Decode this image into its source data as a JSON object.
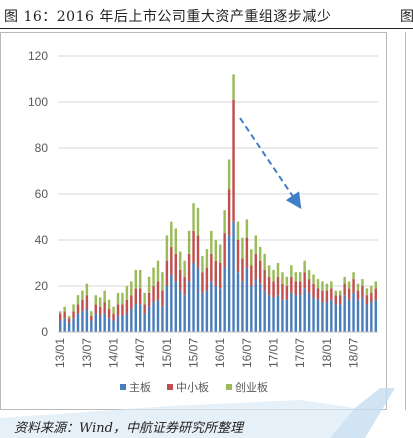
{
  "figure": {
    "title": "图 16：2016 年后上市公司重大资产重组逐步减少",
    "next_fragment": "图",
    "source": "资料来源：Wind，中航证券研究所整理"
  },
  "colors": {
    "main_board": "#4a7ebb",
    "sme_board": "#c0504d",
    "chinext": "#9bbb59",
    "arrow": "#3f7fc7",
    "axis_text": "#595959",
    "grid": "#d9d9d9"
  },
  "chart_data": {
    "type": "bar",
    "stacked": true,
    "title": "",
    "xlabel": "",
    "ylabel": "",
    "ylim": [
      0,
      120
    ],
    "yticks": [
      0,
      20,
      40,
      60,
      80,
      100,
      120
    ],
    "grid": true,
    "legend_position": "bottom",
    "annotation": "dashed arrow pointing down-right from 16/04 toward 17/04",
    "x_tick_labels": [
      "13/01",
      "13/07",
      "14/01",
      "14/07",
      "15/01",
      "15/07",
      "16/01",
      "16/07",
      "17/01",
      "17/07",
      "18/01",
      "18/07"
    ],
    "categories": [
      "13/01",
      "13/02",
      "13/03",
      "13/04",
      "13/05",
      "13/06",
      "13/07",
      "13/08",
      "13/09",
      "13/10",
      "13/11",
      "13/12",
      "14/01",
      "14/02",
      "14/03",
      "14/04",
      "14/05",
      "14/06",
      "14/07",
      "14/08",
      "14/09",
      "14/10",
      "14/11",
      "14/12",
      "15/01",
      "15/02",
      "15/03",
      "15/04",
      "15/05",
      "15/06",
      "15/07",
      "15/08",
      "15/09",
      "15/10",
      "15/11",
      "15/12",
      "16/01",
      "16/02",
      "16/03",
      "16/04",
      "16/05",
      "16/06",
      "16/07",
      "16/08",
      "16/09",
      "16/10",
      "16/11",
      "16/12",
      "17/01",
      "17/02",
      "17/03",
      "17/04",
      "17/05",
      "17/06",
      "17/07",
      "17/08",
      "17/09",
      "17/10",
      "17/11",
      "17/12",
      "18/01",
      "18/02",
      "18/03",
      "18/04",
      "18/05",
      "18/06",
      "18/07",
      "18/08",
      "18/09",
      "18/10",
      "18/11",
      "18/12"
    ],
    "series": [
      {
        "name": "主板",
        "values": [
          5,
          6,
          4,
          6,
          8,
          9,
          10,
          5,
          8,
          7,
          8,
          6,
          5,
          7,
          7,
          8,
          10,
          12,
          12,
          8,
          11,
          13,
          14,
          11,
          20,
          25,
          22,
          18,
          16,
          22,
          30,
          28,
          17,
          18,
          22,
          20,
          19,
          28,
          42,
          48,
          26,
          22,
          28,
          20,
          23,
          21,
          18,
          16,
          15,
          16,
          14,
          14,
          17,
          16,
          16,
          19,
          17,
          15,
          14,
          13,
          13,
          14,
          12,
          12,
          16,
          14,
          17,
          14,
          15,
          12,
          13,
          14
        ]
      },
      {
        "name": "中小板",
        "values": [
          3,
          3,
          2,
          3,
          4,
          5,
          6,
          2,
          4,
          4,
          5,
          4,
          3,
          5,
          5,
          6,
          6,
          7,
          7,
          4,
          6,
          7,
          8,
          7,
          11,
          12,
          12,
          9,
          8,
          12,
          14,
          14,
          9,
          10,
          12,
          11,
          11,
          15,
          20,
          53,
          14,
          10,
          13,
          9,
          11,
          10,
          9,
          8,
          7,
          8,
          7,
          6,
          7,
          6,
          6,
          7,
          6,
          6,
          5,
          5,
          5,
          5,
          4,
          4,
          5,
          5,
          6,
          4,
          5,
          4,
          4,
          5
        ]
      },
      {
        "name": "创业板",
        "values": [
          1,
          2,
          1,
          3,
          4,
          4,
          5,
          2,
          4,
          4,
          5,
          4,
          3,
          5,
          5,
          6,
          6,
          8,
          8,
          5,
          7,
          8,
          9,
          8,
          11,
          11,
          11,
          8,
          7,
          10,
          12,
          12,
          7,
          8,
          10,
          9,
          8,
          10,
          13,
          11,
          8,
          9,
          8,
          7,
          8,
          6,
          7,
          5,
          5,
          6,
          5,
          4,
          5,
          4,
          4,
          5,
          4,
          4,
          4,
          4,
          3,
          3,
          2,
          2,
          3,
          3,
          3,
          3,
          3,
          3,
          3,
          3
        ]
      }
    ]
  },
  "legend": [
    {
      "label": "主板",
      "color": "#4a7ebb"
    },
    {
      "label": "中小板",
      "color": "#c0504d"
    },
    {
      "label": "创业板",
      "color": "#9bbb59"
    }
  ]
}
